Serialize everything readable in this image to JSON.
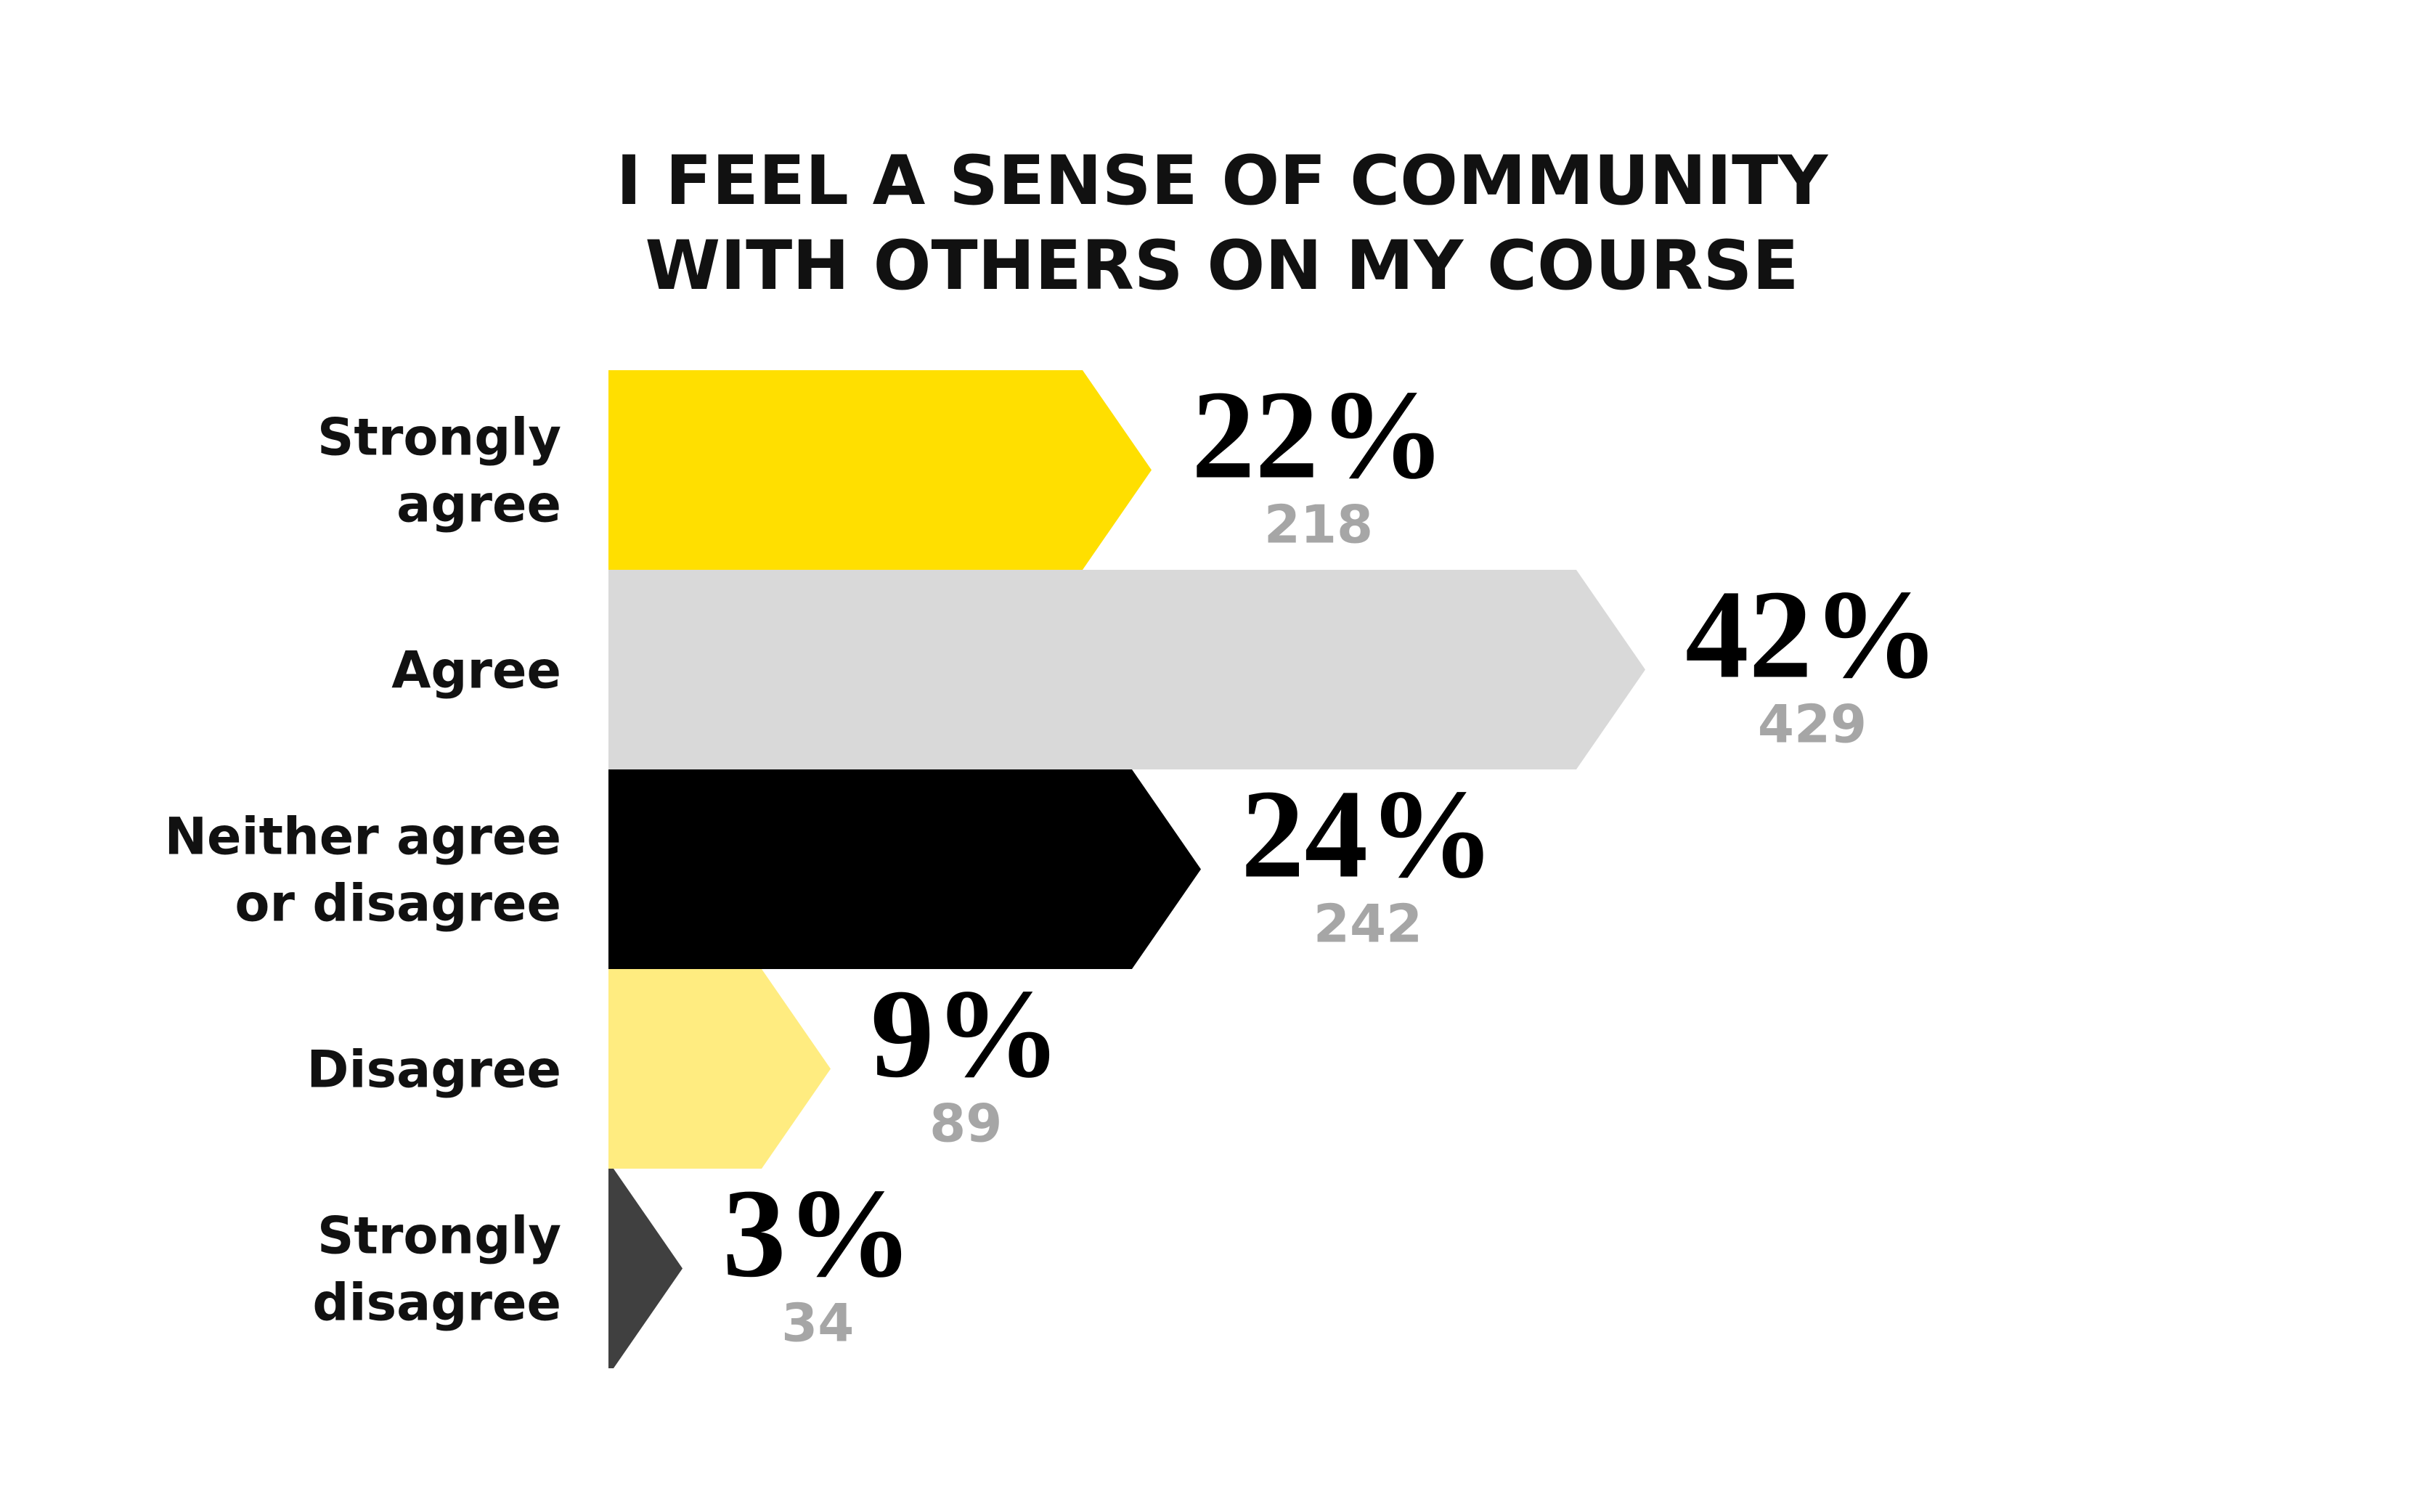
{
  "chart_data": {
    "type": "bar",
    "orientation": "horizontal",
    "title_lines": [
      "I FEEL A SENSE OF COMMUNITY",
      "WITH OTHERS ON MY COURSE"
    ],
    "categories": [
      [
        "Strongly",
        "agree"
      ],
      [
        "Agree"
      ],
      [
        "Neither agree",
        "or disagree"
      ],
      [
        "Disagree"
      ],
      [
        "Strongly",
        "disagree"
      ]
    ],
    "percent_labels": [
      "22%",
      "42%",
      "24%",
      "9%",
      "3%"
    ],
    "values": [
      22,
      42,
      24,
      9,
      3
    ],
    "counts": [
      218,
      429,
      242,
      89,
      34
    ],
    "colors": [
      "#ffdf00",
      "#d9d9d9",
      "#000000",
      "#ffec80",
      "#404040"
    ],
    "count_color": "#a6a6a6",
    "bar_shape": "arrow-right",
    "grid": false,
    "legend": "none"
  }
}
